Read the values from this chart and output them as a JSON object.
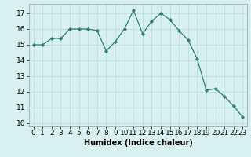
{
  "x": [
    0,
    1,
    2,
    3,
    4,
    5,
    6,
    7,
    8,
    9,
    10,
    11,
    12,
    13,
    14,
    15,
    16,
    17,
    18,
    19,
    20,
    21,
    22,
    23
  ],
  "y": [
    15.0,
    15.0,
    15.4,
    15.4,
    16.0,
    16.0,
    16.0,
    15.9,
    14.6,
    15.2,
    16.0,
    17.2,
    15.7,
    16.5,
    17.0,
    16.6,
    15.9,
    15.3,
    14.1,
    12.1,
    12.2,
    11.7,
    11.1,
    10.4
  ],
  "line_color": "#2e7d6e",
  "marker_color": "#2e7d6e",
  "bg_color": "#d8f0f0",
  "grid_color": "#b8dede",
  "xlabel": "Humidex (Indice chaleur)",
  "xlim": [
    -0.5,
    23.5
  ],
  "ylim": [
    9.8,
    17.6
  ],
  "yticks": [
    10,
    11,
    12,
    13,
    14,
    15,
    16,
    17
  ],
  "xticks": [
    0,
    1,
    2,
    3,
    4,
    5,
    6,
    7,
    8,
    9,
    10,
    11,
    12,
    13,
    14,
    15,
    16,
    17,
    18,
    19,
    20,
    21,
    22,
    23
  ],
  "label_fontsize": 7,
  "tick_fontsize": 6.5
}
